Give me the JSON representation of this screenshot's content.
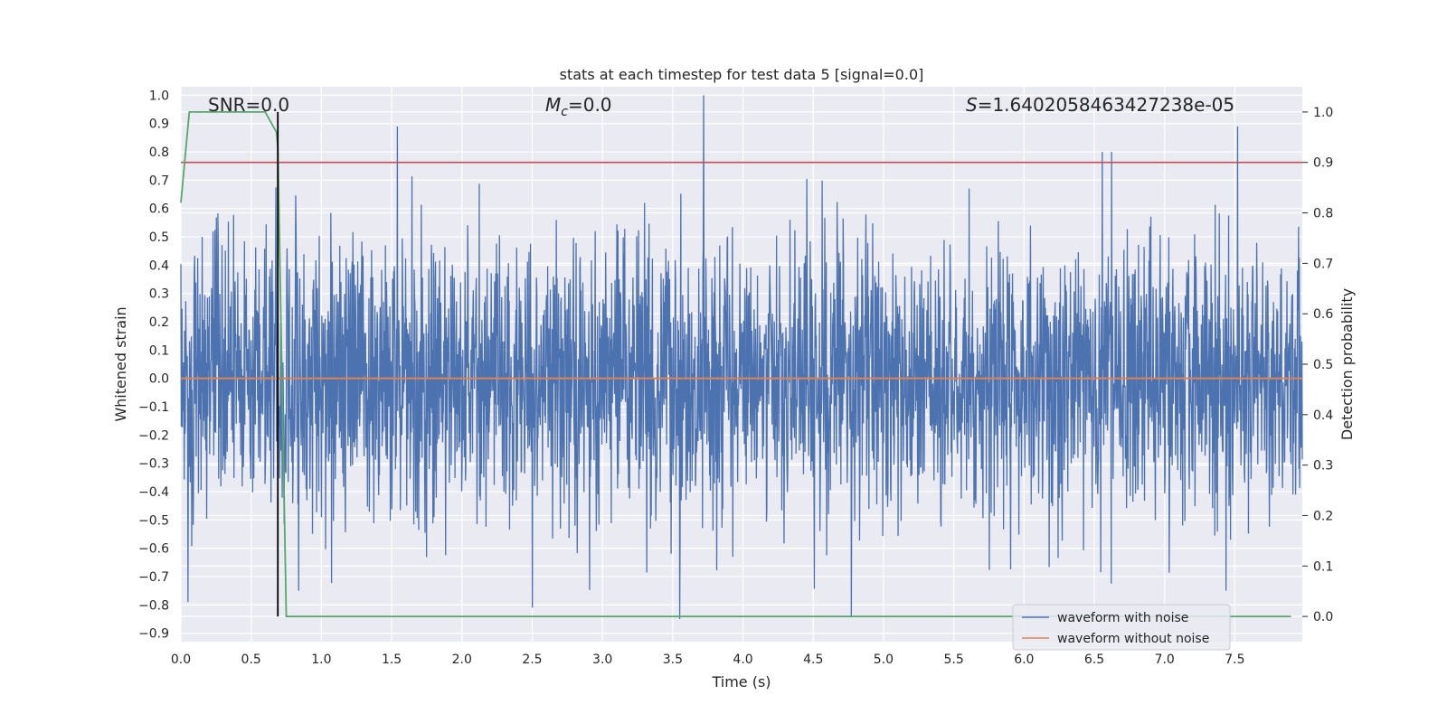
{
  "chart_data": {
    "type": "line",
    "title": "stats at each timestep for test data 5 [signal=0.0]",
    "xlabel": "Time (s)",
    "ylabel_left": "Whitened strain",
    "ylabel_right": "Detection probability",
    "xlim": [
      0.0,
      7.98
    ],
    "ylim_left": [
      -0.93,
      1.03
    ],
    "ylim_right": [
      -0.05,
      1.05
    ],
    "grid": true,
    "x_ticks": [
      "0.0",
      "0.5",
      "1.0",
      "1.5",
      "2.0",
      "2.5",
      "3.0",
      "3.5",
      "4.0",
      "4.5",
      "5.0",
      "5.5",
      "6.0",
      "6.5",
      "7.0",
      "7.5"
    ],
    "y_ticks_left": [
      "1.0",
      "0.9",
      "0.8",
      "0.7",
      "0.6",
      "0.5",
      "0.4",
      "0.3",
      "0.2",
      "0.1",
      "0.0",
      "−0.1",
      "−0.2",
      "−0.3",
      "−0.4",
      "−0.5",
      "−0.6",
      "−0.7",
      "−0.8",
      "−0.9"
    ],
    "y_ticks_right": [
      "1.0",
      "0.9",
      "0.8",
      "0.7",
      "0.6",
      "0.5",
      "0.4",
      "0.3",
      "0.2",
      "0.1",
      "0.0"
    ],
    "annotations": {
      "snr": "SNR=0.0",
      "mc_symbol": "M",
      "mc_sub": "c",
      "mc_value": "=0.0",
      "s_symbol": "S",
      "s_value": "=1.6402058463427238e-05"
    },
    "series": [
      {
        "name": "waveform with noise",
        "axis": "left",
        "color": "#4c72b0",
        "description": "noisy whitened strain, approx range -0.85..1.0",
        "notable_peaks": [
          {
            "x": 0.69,
            "y": 0.75
          },
          {
            "x": 1.54,
            "y": 0.89
          },
          {
            "x": 3.72,
            "y": 1.0
          },
          {
            "x": 7.52,
            "y": 0.89
          }
        ],
        "notable_troughs": [
          {
            "x": 0.05,
            "y": -0.79
          },
          {
            "x": 2.5,
            "y": -0.81
          },
          {
            "x": 3.55,
            "y": -0.85
          },
          {
            "x": 4.77,
            "y": -0.84
          }
        ]
      },
      {
        "name": "waveform without noise",
        "axis": "left",
        "color": "#dd8452",
        "x": [
          0.0,
          7.98
        ],
        "y": [
          0.0,
          0.0
        ]
      },
      {
        "name": "detection probability",
        "axis": "right",
        "color": "#55a868",
        "x": [
          0.0,
          0.06,
          0.1,
          0.15,
          0.6,
          0.68,
          0.69,
          0.75,
          1.0,
          7.9
        ],
        "y": [
          0.82,
          1.0,
          1.0,
          1.0,
          1.0,
          0.96,
          0.93,
          0.0,
          0.0,
          0.0
        ]
      },
      {
        "name": "threshold",
        "axis": "right",
        "color": "#c44e52",
        "x": [
          0.0,
          7.98
        ],
        "y": [
          0.9,
          0.9
        ]
      },
      {
        "name": "marker",
        "axis": "right",
        "color": "#000000",
        "x": [
          0.69,
          0.69
        ],
        "y": [
          0.0,
          1.0
        ]
      }
    ],
    "legend": {
      "placement": "lower-right",
      "entries": [
        {
          "label": "waveform with noise",
          "color": "#4c72b0"
        },
        {
          "label": "waveform without noise",
          "color": "#dd8452"
        }
      ]
    }
  }
}
